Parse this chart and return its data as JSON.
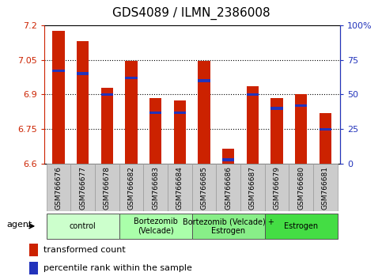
{
  "title": "GDS4089 / ILMN_2386008",
  "samples": [
    "GSM766676",
    "GSM766677",
    "GSM766678",
    "GSM766682",
    "GSM766683",
    "GSM766684",
    "GSM766685",
    "GSM766686",
    "GSM766687",
    "GSM766679",
    "GSM766680",
    "GSM766681"
  ],
  "red_values": [
    7.175,
    7.13,
    6.93,
    7.045,
    6.885,
    6.875,
    7.045,
    6.665,
    6.935,
    6.885,
    6.9,
    6.82
  ],
  "blue_percentiles": [
    67,
    65,
    50,
    62,
    37,
    37,
    60,
    3,
    50,
    40,
    42,
    25
  ],
  "y_min": 6.6,
  "y_max": 7.2,
  "y_ticks": [
    6.6,
    6.75,
    6.9,
    7.05,
    7.2
  ],
  "y_tick_labels": [
    "6.6",
    "6.75",
    "6.9",
    "7.05",
    "7.2"
  ],
  "right_y_ticks": [
    0,
    25,
    50,
    75,
    100
  ],
  "right_y_labels": [
    "0",
    "25",
    "50",
    "75",
    "100%"
  ],
  "bar_color": "#cc2200",
  "blue_color": "#2233bb",
  "groups": [
    {
      "label": "control",
      "start": 0,
      "end": 3,
      "color": "#ccffcc"
    },
    {
      "label": "Bortezomib\n(Velcade)",
      "start": 3,
      "end": 6,
      "color": "#aaffaa"
    },
    {
      "label": "Bortezomib (Velcade) +\nEstrogen",
      "start": 6,
      "end": 9,
      "color": "#88ee88"
    },
    {
      "label": "Estrogen",
      "start": 9,
      "end": 12,
      "color": "#44dd44"
    }
  ],
  "xlabel_color": "#cc2200",
  "right_axis_color": "#2233bb",
  "bar_width": 0.5
}
